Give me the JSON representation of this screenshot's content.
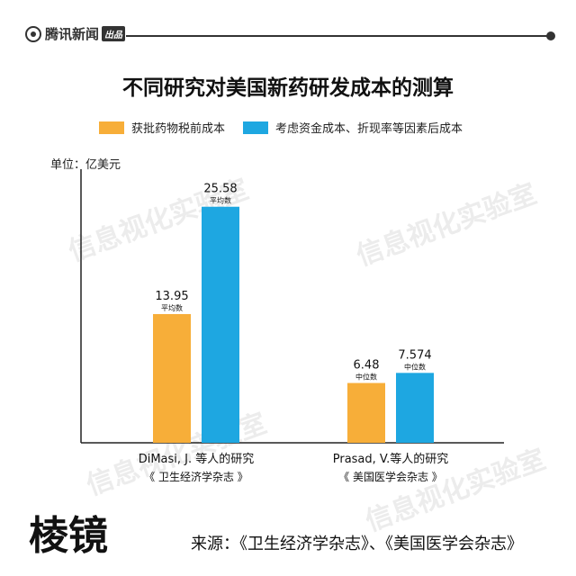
{
  "header": {
    "brand": "腾讯新闻",
    "brand_tag": "出品"
  },
  "watermark": "信息视化实验室",
  "chart_data": {
    "type": "bar",
    "title": "不同研究对美国新药研发成本的测算",
    "unit_label": "单位：亿美元",
    "categories": [
      {
        "line1": "DiMasi, J. 等人的研究",
        "line2": "《 卫生经济学杂志 》"
      },
      {
        "line1": "Prasad, V.等人的研究",
        "line2": "《 美国医学会杂志 》"
      }
    ],
    "series": [
      {
        "name": "获批药物税前成本",
        "color": "#F7AE39",
        "values": [
          13.95,
          6.48
        ],
        "notes": [
          "平均数",
          "中位数"
        ]
      },
      {
        "name": "考虑资金成本、折现率等因素后成本",
        "color": "#1EA7E1",
        "values": [
          25.58,
          7.574
        ],
        "notes": [
          "平均数",
          "中位数"
        ]
      }
    ],
    "value_labels": [
      [
        "13.95",
        "6.48"
      ],
      [
        "25.58",
        "7.574"
      ]
    ],
    "ylim": [
      0,
      31.6
    ],
    "grid": false,
    "legend_position": "top"
  },
  "footer": {
    "logo_text": "棱镜",
    "source": "来源：《卫生经济学杂志》、《美国医学会杂志》"
  }
}
